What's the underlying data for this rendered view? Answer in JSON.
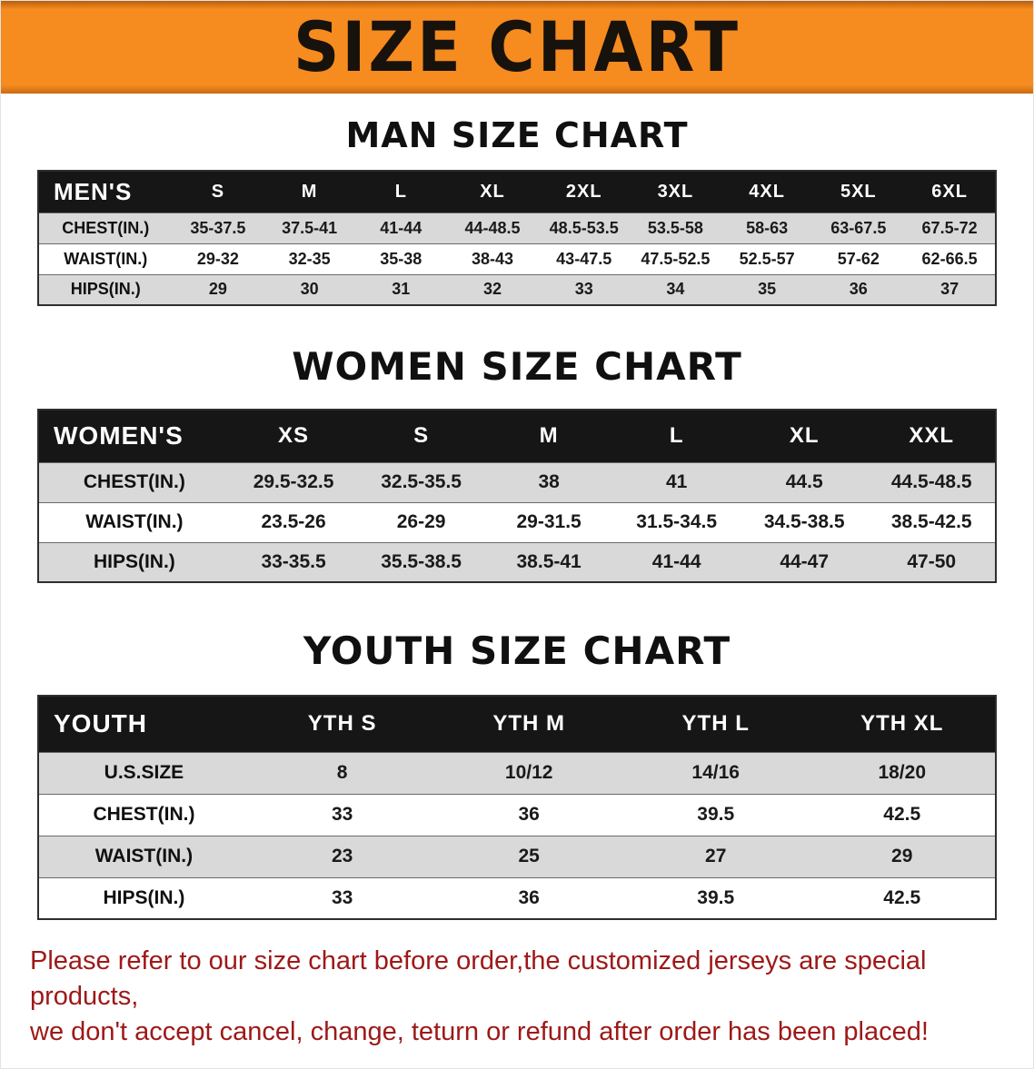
{
  "banner": {
    "title": "SIZE CHART"
  },
  "sections": [
    {
      "heading": "MAN SIZE CHART",
      "table": {
        "header": [
          "MEN'S",
          "S",
          "M",
          "L",
          "XL",
          "2XL",
          "3XL",
          "4XL",
          "5XL",
          "6XL"
        ],
        "rows": [
          [
            "CHEST(IN.)",
            "35-37.5",
            "37.5-41",
            "41-44",
            "44-48.5",
            "48.5-53.5",
            "53.5-58",
            "58-63",
            "63-67.5",
            "67.5-72"
          ],
          [
            "WAIST(IN.)",
            "29-32",
            "32-35",
            "35-38",
            "38-43",
            "43-47.5",
            "47.5-52.5",
            "52.5-57",
            "57-62",
            "62-66.5"
          ],
          [
            "HIPS(IN.)",
            "29",
            "30",
            "31",
            "32",
            "33",
            "34",
            "35",
            "36",
            "37"
          ]
        ]
      }
    },
    {
      "heading": "WOMEN SIZE CHART",
      "table": {
        "header": [
          "WOMEN'S",
          "XS",
          "S",
          "M",
          "L",
          "XL",
          "XXL"
        ],
        "rows": [
          [
            "CHEST(IN.)",
            "29.5-32.5",
            "32.5-35.5",
            "38",
            "41",
            "44.5",
            "44.5-48.5"
          ],
          [
            "WAIST(IN.)",
            "23.5-26",
            "26-29",
            "29-31.5",
            "31.5-34.5",
            "34.5-38.5",
            "38.5-42.5"
          ],
          [
            "HIPS(IN.)",
            "33-35.5",
            "35.5-38.5",
            "38.5-41",
            "41-44",
            "44-47",
            "47-50"
          ]
        ]
      }
    },
    {
      "heading": "YOUTH SIZE CHART",
      "table": {
        "header": [
          "YOUTH",
          "YTH S",
          "YTH M",
          "YTH L",
          "YTH XL"
        ],
        "rows": [
          [
            "U.S.SIZE",
            "8",
            "10/12",
            "14/16",
            "18/20"
          ],
          [
            "CHEST(IN.)",
            "33",
            "36",
            "39.5",
            "42.5"
          ],
          [
            "WAIST(IN.)",
            "23",
            "25",
            "27",
            "29"
          ],
          [
            "HIPS(IN.)",
            "33",
            "36",
            "39.5",
            "42.5"
          ]
        ]
      }
    }
  ],
  "footer": {
    "line1": "Please refer to our size chart before order,the customized jerseys are special products,",
    "line2": "we don't accept cancel, change, teturn or refund after order has been placed!"
  },
  "colors": {
    "banner_bg": "#f68b1f",
    "header_bg": "#161616",
    "row_alt": "#d9d9d9",
    "notice_color": "#9e1818"
  }
}
